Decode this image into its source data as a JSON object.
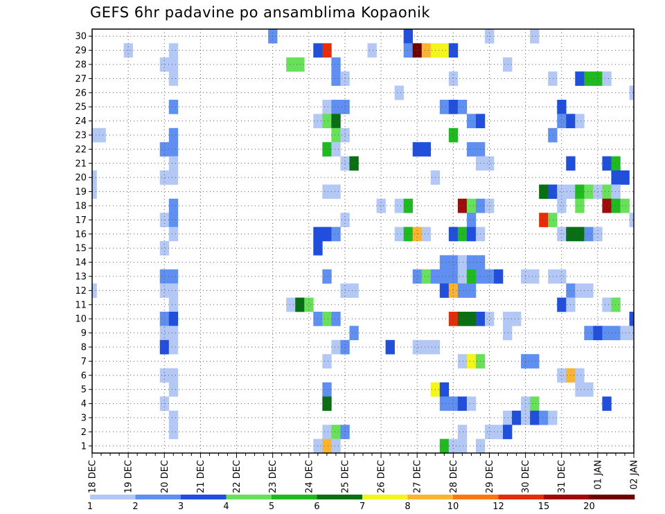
{
  "chart_data": {
    "type": "heatmap",
    "title": "GEFS 6hr padavine po ansamblima Kopaonik",
    "x_tick_labels": [
      "18 DEC",
      "19 DEC",
      "20 DEC",
      "21 DEC",
      "22 DEC",
      "23 DEC",
      "24 DEC",
      "25 DEC",
      "26 DEC",
      "27 DEC",
      "28 DEC",
      "29 DEC",
      "30 DEC",
      "31 DEC",
      "01 JAN",
      "02 JAN"
    ],
    "y_tick_labels": [
      "1",
      "2",
      "3",
      "4",
      "5",
      "6",
      "7",
      "8",
      "9",
      "10",
      "11",
      "12",
      "13",
      "14",
      "15",
      "16",
      "17",
      "18",
      "19",
      "20",
      "21",
      "22",
      "23",
      "24",
      "25",
      "26",
      "27",
      "28",
      "29",
      "30"
    ],
    "xlim_days": [
      0,
      15
    ],
    "ylim_members": [
      0,
      30
    ],
    "time_step_hours": 6,
    "grid": "dotted",
    "colorbar": {
      "levels": [
        "1",
        "2",
        "3",
        "4",
        "5",
        "6",
        "7",
        "8",
        "10",
        "12",
        "15",
        "20"
      ],
      "colors": [
        "#b4c8f5",
        "#5f8ff0",
        "#1f4fdc",
        "#69e05a",
        "#1fba1f",
        "#0a6e14",
        "#f5f51e",
        "#fab432",
        "#fa7814",
        "#e62d0a",
        "#a00a0a",
        "#6e0000"
      ]
    },
    "cells": [
      [
        "30",
        [
          [
            20,
            1
          ],
          [
            35,
            2
          ],
          [
            44,
            0
          ],
          [
            49,
            0
          ]
        ]
      ],
      [
        "29",
        [
          [
            4,
            0
          ],
          [
            9,
            0
          ],
          [
            25,
            2
          ],
          [
            26,
            9
          ],
          [
            31,
            0
          ],
          [
            35,
            1
          ],
          [
            36,
            11
          ],
          [
            37,
            7
          ],
          [
            38,
            6
          ],
          [
            39,
            6
          ],
          [
            40,
            2
          ]
        ]
      ],
      [
        "28",
        [
          [
            8,
            0
          ],
          [
            9,
            0
          ],
          [
            22,
            3
          ],
          [
            23,
            3
          ],
          [
            27,
            1
          ],
          [
            46,
            0
          ]
        ]
      ],
      [
        "27",
        [
          [
            9,
            0
          ],
          [
            27,
            1
          ],
          [
            28,
            0
          ],
          [
            40,
            0
          ],
          [
            51,
            0
          ],
          [
            54,
            2
          ],
          [
            55,
            4
          ],
          [
            56,
            4
          ],
          [
            57,
            0
          ]
        ]
      ],
      [
        "26",
        [
          [
            34,
            0
          ],
          [
            60,
            0
          ]
        ]
      ],
      [
        "25",
        [
          [
            9,
            1
          ],
          [
            26,
            0
          ],
          [
            27,
            1
          ],
          [
            28,
            1
          ],
          [
            39,
            1
          ],
          [
            40,
            2
          ],
          [
            41,
            1
          ],
          [
            52,
            2
          ]
        ]
      ],
      [
        "24",
        [
          [
            25,
            0
          ],
          [
            26,
            3
          ],
          [
            27,
            5
          ],
          [
            42,
            1
          ],
          [
            43,
            2
          ],
          [
            52,
            1
          ],
          [
            53,
            2
          ],
          [
            54,
            0
          ]
        ]
      ],
      [
        "23",
        [
          [
            0,
            0
          ],
          [
            1,
            0
          ],
          [
            9,
            1
          ],
          [
            27,
            3
          ],
          [
            28,
            0
          ],
          [
            40,
            4
          ],
          [
            51,
            1
          ]
        ]
      ],
      [
        "22",
        [
          [
            8,
            1
          ],
          [
            9,
            1
          ],
          [
            26,
            4
          ],
          [
            27,
            0
          ],
          [
            36,
            2
          ],
          [
            37,
            2
          ],
          [
            42,
            1
          ],
          [
            43,
            1
          ]
        ]
      ],
      [
        "21",
        [
          [
            9,
            0
          ],
          [
            28,
            0
          ],
          [
            29,
            5
          ],
          [
            43,
            0
          ],
          [
            44,
            0
          ],
          [
            53,
            2
          ],
          [
            57,
            2
          ],
          [
            58,
            4
          ]
        ]
      ],
      [
        "20",
        [
          [
            0,
            0
          ],
          [
            8,
            0
          ],
          [
            9,
            0
          ],
          [
            38,
            0
          ],
          [
            58,
            2
          ],
          [
            59,
            2
          ]
        ]
      ],
      [
        "19",
        [
          [
            0,
            0
          ],
          [
            26,
            0
          ],
          [
            27,
            0
          ],
          [
            50,
            5
          ],
          [
            51,
            2
          ],
          [
            52,
            0
          ],
          [
            53,
            0
          ],
          [
            54,
            4
          ],
          [
            55,
            3
          ],
          [
            56,
            0
          ],
          [
            57,
            3
          ],
          [
            58,
            0
          ]
        ]
      ],
      [
        "18",
        [
          [
            9,
            1
          ],
          [
            32,
            0
          ],
          [
            34,
            0
          ],
          [
            35,
            4
          ],
          [
            41,
            10
          ],
          [
            42,
            3
          ],
          [
            43,
            1
          ],
          [
            44,
            0
          ],
          [
            52,
            0
          ],
          [
            54,
            3
          ],
          [
            57,
            10
          ],
          [
            58,
            4
          ],
          [
            59,
            3
          ]
        ]
      ],
      [
        "17",
        [
          [
            8,
            0
          ],
          [
            9,
            1
          ],
          [
            28,
            0
          ],
          [
            42,
            1
          ],
          [
            50,
            9
          ],
          [
            51,
            3
          ],
          [
            60,
            0
          ]
        ]
      ],
      [
        "16",
        [
          [
            9,
            0
          ],
          [
            25,
            2
          ],
          [
            26,
            2
          ],
          [
            27,
            1
          ],
          [
            34,
            0
          ],
          [
            35,
            4
          ],
          [
            36,
            7
          ],
          [
            37,
            0
          ],
          [
            40,
            2
          ],
          [
            41,
            4
          ],
          [
            42,
            2
          ],
          [
            43,
            0
          ],
          [
            52,
            0
          ],
          [
            53,
            5
          ],
          [
            54,
            5
          ],
          [
            55,
            1
          ],
          [
            56,
            0
          ]
        ]
      ],
      [
        "15",
        [
          [
            8,
            0
          ],
          [
            25,
            2
          ]
        ]
      ],
      [
        "14",
        [
          [
            39,
            1
          ],
          [
            40,
            1
          ],
          [
            41,
            0
          ],
          [
            42,
            1
          ],
          [
            43,
            1
          ]
        ]
      ],
      [
        "13",
        [
          [
            8,
            1
          ],
          [
            9,
            1
          ],
          [
            26,
            1
          ],
          [
            36,
            1
          ],
          [
            37,
            3
          ],
          [
            38,
            1
          ],
          [
            39,
            1
          ],
          [
            40,
            1
          ],
          [
            41,
            0
          ],
          [
            42,
            4
          ],
          [
            43,
            1
          ],
          [
            44,
            1
          ],
          [
            45,
            2
          ],
          [
            48,
            0
          ],
          [
            49,
            0
          ],
          [
            51,
            0
          ],
          [
            52,
            0
          ]
        ]
      ],
      [
        "12",
        [
          [
            0,
            0
          ],
          [
            8,
            0
          ],
          [
            9,
            0
          ],
          [
            28,
            0
          ],
          [
            29,
            0
          ],
          [
            39,
            2
          ],
          [
            40,
            7
          ],
          [
            41,
            1
          ],
          [
            42,
            1
          ],
          [
            53,
            1
          ],
          [
            54,
            0
          ],
          [
            55,
            0
          ]
        ]
      ],
      [
        "11",
        [
          [
            9,
            0
          ],
          [
            22,
            0
          ],
          [
            23,
            5
          ],
          [
            24,
            3
          ],
          [
            52,
            2
          ],
          [
            53,
            0
          ],
          [
            57,
            0
          ],
          [
            58,
            3
          ]
        ]
      ],
      [
        "10",
        [
          [
            8,
            1
          ],
          [
            9,
            2
          ],
          [
            25,
            1
          ],
          [
            26,
            3
          ],
          [
            27,
            1
          ],
          [
            40,
            9
          ],
          [
            41,
            5
          ],
          [
            42,
            5
          ],
          [
            43,
            2
          ],
          [
            44,
            0
          ],
          [
            46,
            0
          ],
          [
            47,
            0
          ],
          [
            60,
            2
          ]
        ]
      ],
      [
        "9",
        [
          [
            8,
            0
          ],
          [
            9,
            0
          ],
          [
            29,
            1
          ],
          [
            46,
            0
          ],
          [
            55,
            1
          ],
          [
            56,
            2
          ],
          [
            57,
            1
          ],
          [
            58,
            1
          ],
          [
            59,
            0
          ],
          [
            60,
            0
          ]
        ]
      ],
      [
        "8",
        [
          [
            8,
            2
          ],
          [
            9,
            0
          ],
          [
            27,
            0
          ],
          [
            28,
            1
          ],
          [
            33,
            2
          ],
          [
            36,
            0
          ],
          [
            37,
            0
          ],
          [
            38,
            0
          ]
        ]
      ],
      [
        "7",
        [
          [
            26,
            0
          ],
          [
            41,
            0
          ],
          [
            42,
            6
          ],
          [
            43,
            3
          ],
          [
            48,
            1
          ],
          [
            49,
            1
          ]
        ]
      ],
      [
        "6",
        [
          [
            8,
            0
          ],
          [
            9,
            0
          ],
          [
            52,
            0
          ],
          [
            53,
            7
          ],
          [
            54,
            0
          ]
        ]
      ],
      [
        "5",
        [
          [
            9,
            0
          ],
          [
            26,
            1
          ],
          [
            38,
            6
          ],
          [
            39,
            2
          ],
          [
            54,
            0
          ],
          [
            55,
            0
          ]
        ]
      ],
      [
        "4",
        [
          [
            8,
            0
          ],
          [
            26,
            5
          ],
          [
            39,
            1
          ],
          [
            40,
            1
          ],
          [
            41,
            2
          ],
          [
            42,
            0
          ],
          [
            48,
            0
          ],
          [
            49,
            3
          ],
          [
            57,
            2
          ]
        ]
      ],
      [
        "3",
        [
          [
            9,
            0
          ],
          [
            46,
            0
          ],
          [
            47,
            2
          ],
          [
            48,
            0
          ],
          [
            49,
            2
          ],
          [
            50,
            1
          ],
          [
            51,
            0
          ]
        ]
      ],
      [
        "2",
        [
          [
            9,
            0
          ],
          [
            26,
            0
          ],
          [
            27,
            3
          ],
          [
            28,
            1
          ],
          [
            41,
            0
          ],
          [
            44,
            0
          ],
          [
            45,
            0
          ],
          [
            46,
            2
          ]
        ]
      ],
      [
        "1",
        [
          [
            25,
            0
          ],
          [
            26,
            7
          ],
          [
            27,
            0
          ],
          [
            39,
            4
          ],
          [
            40,
            0
          ],
          [
            41,
            0
          ],
          [
            43,
            0
          ]
        ]
      ]
    ]
  }
}
